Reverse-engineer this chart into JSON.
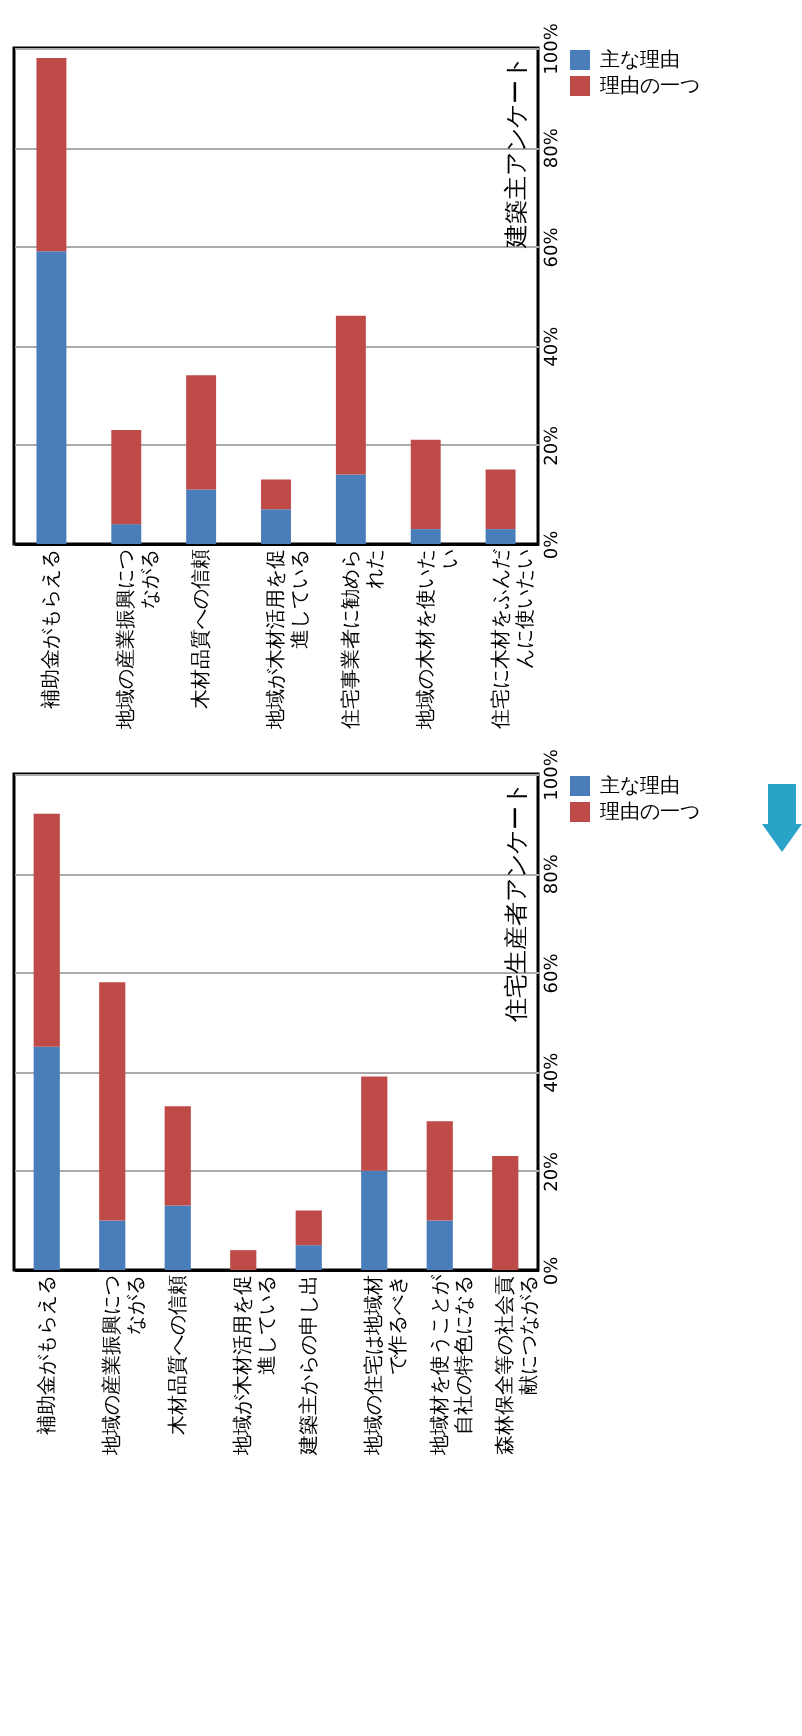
{
  "chart_data": [
    {
      "type": "bar",
      "stacked": true,
      "title": "建築主アンケート",
      "categories": [
        "補助金がもらえる",
        "地域の産業振興につながる",
        "木材品質への信頼",
        "地域が木材活用を促進している",
        "住宅事業者に勧められた",
        "地域の木材を使いたい",
        "住宅に木材をふんだんに使いたい"
      ],
      "series": [
        {
          "name": "主な理由",
          "color": "#4a7ebb",
          "values": [
            59,
            4,
            11,
            7,
            14,
            3,
            3
          ]
        },
        {
          "name": "理由の一つ",
          "color": "#be4b48",
          "values": [
            39,
            19,
            23,
            6,
            32,
            18,
            12
          ]
        }
      ],
      "ylim": [
        0,
        100
      ],
      "yticks": [
        {
          "value": 0,
          "label": "0%"
        },
        {
          "value": 20,
          "label": "20%"
        },
        {
          "value": 40,
          "label": "40%"
        },
        {
          "value": 60,
          "label": "60%"
        },
        {
          "value": 80,
          "label": "80%"
        },
        {
          "value": 100,
          "label": "100%"
        }
      ],
      "grid": "y",
      "legend": "right"
    },
    {
      "type": "bar",
      "stacked": true,
      "title": "住宅生産者アンケート",
      "categories": [
        "補助金がもらえる",
        "地域の産業振興につながる",
        "木材品質への信頼",
        "地域が木材活用を促進している",
        "建築主からの申し出",
        "地域の住宅は地域材で作るべき",
        "地域材を使うことが自社の特色になる",
        "森林保全等の社会貢献につながる"
      ],
      "series": [
        {
          "name": "主な理由",
          "color": "#4a7ebb",
          "values": [
            45,
            10,
            13,
            null,
            5,
            20,
            10,
            null
          ]
        },
        {
          "name": "理由の一つ",
          "color": "#be4b48",
          "values": [
            47,
            48,
            20,
            4,
            7,
            19,
            20,
            23
          ]
        }
      ],
      "ylim": [
        0,
        100
      ],
      "yticks": [
        {
          "value": 0,
          "label": "0%"
        },
        {
          "value": 20,
          "label": "20%"
        },
        {
          "value": 40,
          "label": "40%"
        },
        {
          "value": 60,
          "label": "60%"
        },
        {
          "value": 80,
          "label": "80%"
        },
        {
          "value": 100,
          "label": "100%"
        }
      ],
      "grid": "y",
      "legend": "right"
    }
  ]
}
